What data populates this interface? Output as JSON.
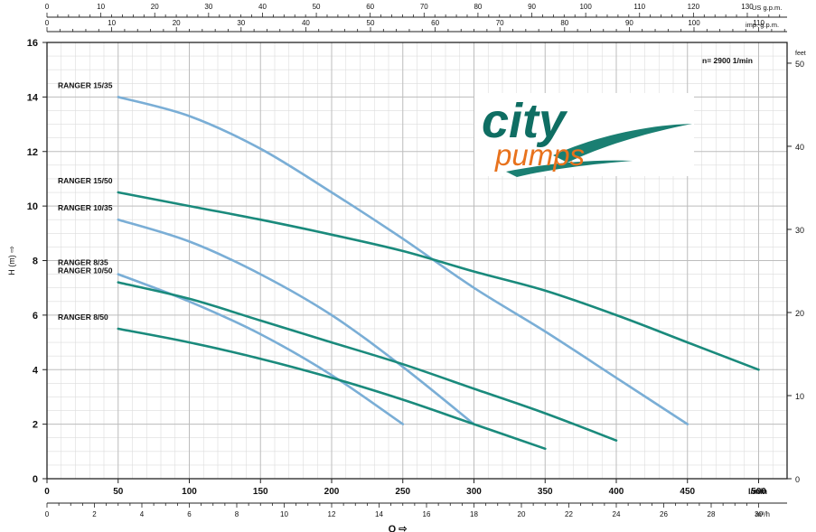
{
  "chart_data": {
    "type": "line",
    "y_axis_label": "H (m) ⇨",
    "y_ticks": [
      0,
      2,
      4,
      6,
      8,
      10,
      12,
      14,
      16
    ],
    "ylim": [
      0,
      16
    ],
    "y_right_label": "feet",
    "y_right_ticks": [
      0,
      10,
      20,
      30,
      40,
      50
    ],
    "x_axis_label": "Q ⇨",
    "x_lmin_unit": "l/min",
    "x_lmin_ticks": [
      0,
      50,
      100,
      150,
      200,
      250,
      300,
      350,
      400,
      450,
      500
    ],
    "xlim": [
      0,
      520
    ],
    "x_m3h_unit": "m³/h",
    "x_m3h_ticks": [
      0,
      2,
      4,
      6,
      8,
      10,
      12,
      14,
      16,
      18,
      20,
      22,
      24,
      26,
      28,
      30
    ],
    "top_usgpm_unit": "US g.p.m.",
    "top_usgpm_ticks": [
      0,
      10,
      20,
      30,
      40,
      50,
      60,
      70,
      80,
      90,
      100,
      110,
      120,
      130
    ],
    "top_impgpm_unit": "imp. g.p.m.",
    "top_impgpm_ticks": [
      0,
      10,
      20,
      30,
      40,
      50,
      60,
      70,
      80,
      90,
      100,
      110
    ],
    "speed_note": "n= 2900 1/min",
    "grid": true,
    "series": [
      {
        "name": "RANGER 15/35",
        "color": "#7aaed6",
        "x": [
          50,
          100,
          150,
          200,
          250,
          300,
          350,
          400,
          450
        ],
        "y": [
          14,
          13.3,
          12.1,
          10.5,
          8.8,
          7.0,
          5.4,
          3.7,
          2.0
        ]
      },
      {
        "name": "RANGER 15/50",
        "color": "#1a8a7c",
        "x": [
          50,
          100,
          150,
          200,
          250,
          300,
          350,
          400,
          450,
          500
        ],
        "y": [
          10.5,
          10.0,
          9.5,
          8.95,
          8.35,
          7.6,
          6.9,
          6.0,
          5.0,
          4.0
        ]
      },
      {
        "name": "RANGER 10/35",
        "color": "#7aaed6",
        "x": [
          50,
          100,
          150,
          200,
          250,
          300
        ],
        "y": [
          9.5,
          8.7,
          7.5,
          6.0,
          4.1,
          2.0
        ]
      },
      {
        "name": "RANGER 8/35",
        "color": "#7aaed6",
        "x": [
          50,
          100,
          150,
          200,
          250
        ],
        "y": [
          7.5,
          6.5,
          5.3,
          3.8,
          2.0
        ]
      },
      {
        "name": "RANGER 10/50",
        "color": "#1a8a7c",
        "x": [
          50,
          100,
          150,
          200,
          250,
          300,
          350,
          400
        ],
        "y": [
          7.2,
          6.6,
          5.8,
          5.0,
          4.2,
          3.3,
          2.4,
          1.4
        ]
      },
      {
        "name": "RANGER 8/50",
        "color": "#1a8a7c",
        "x": [
          50,
          100,
          150,
          200,
          250,
          300,
          350
        ],
        "y": [
          5.5,
          5.0,
          4.4,
          3.7,
          2.9,
          2.0,
          1.1
        ]
      }
    ]
  },
  "logo": {
    "text_city": "city",
    "text_pumps": "pumps",
    "color_city": "#0f6e63",
    "color_pumps": "#e8721c",
    "swoosh_color": "#1a7f72"
  }
}
